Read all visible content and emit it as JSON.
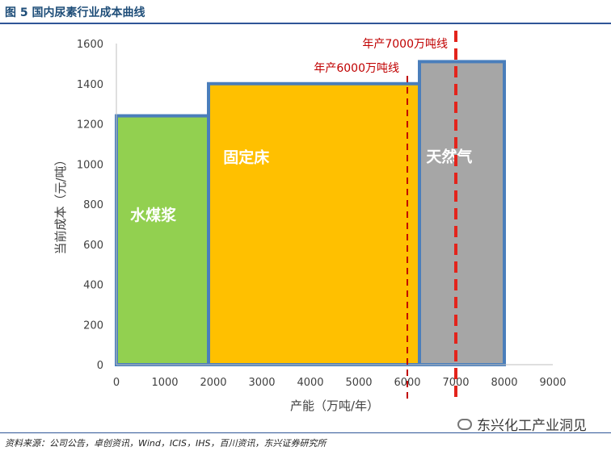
{
  "figure_title": "图 5 国内尿素行业成本曲线",
  "source": "资料来源：公司公告，卓创资讯，Wind，ICIS，IHS，百川资讯，东兴证券研究所",
  "watermark": "东兴化工产业洞见",
  "colors": {
    "coal_water_slurry": "#92d050",
    "fixed_bed": "#ffc000",
    "natural_gas": "#a6a6a6",
    "border": "#4a7ebb",
    "dashed_line": "#e3241c"
  },
  "chart_data": {
    "type": "bar",
    "xlabel": "产能（万吨/年）",
    "ylabel": "当前成本（元/吨）",
    "xlim": [
      0,
      9000
    ],
    "ylim": [
      0,
      1600
    ],
    "x_ticks": [
      "0",
      "1000",
      "2000",
      "3000",
      "4000",
      "5000",
      "6000",
      "7000",
      "8000",
      "9000"
    ],
    "y_ticks": [
      "0",
      "200",
      "400",
      "600",
      "800",
      "1000",
      "1200",
      "1400",
      "1600"
    ],
    "grid": false,
    "series": [
      {
        "name": "水煤浆",
        "x_start": 0,
        "x_end": 1900,
        "value": 1240
      },
      {
        "name": "固定床",
        "x_start": 1900,
        "x_end": 6250,
        "value": 1400
      },
      {
        "name": "天然气",
        "x_start": 6250,
        "x_end": 8000,
        "value": 1510
      }
    ],
    "reference_lines": [
      {
        "label": "年产6000万吨线",
        "x": 6000
      },
      {
        "label": "年产7000万吨线",
        "x": 7000
      }
    ]
  }
}
